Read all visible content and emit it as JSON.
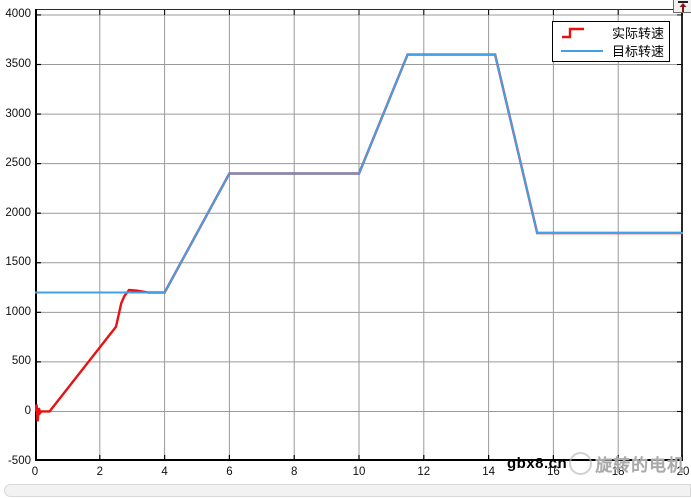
{
  "window": {
    "background": "#ffffff",
    "scrollbar_color": "#f2f2f2"
  },
  "icons": {
    "dock": "dock-pin-up-arrow"
  },
  "chart_data": {
    "type": "line",
    "title": "",
    "xlabel": "",
    "ylabel": "",
    "xlim": [
      0,
      20
    ],
    "ylim": [
      -500,
      4060
    ],
    "x_ticks": [
      0,
      2,
      4,
      6,
      8,
      10,
      12,
      14,
      16,
      18,
      20
    ],
    "y_ticks": [
      -500,
      0,
      500,
      1000,
      1500,
      2000,
      2500,
      3000,
      3500,
      4000
    ],
    "grid": true,
    "grid_color": "#9a9a9a",
    "axis_color": "#000000",
    "legend": {
      "position": "top-right",
      "entries": [
        {
          "label": "实际转速",
          "color": "#e81212",
          "glyph": "step-line"
        },
        {
          "label": "目标转速",
          "color": "#41a0e8",
          "glyph": "solid-line"
        }
      ]
    },
    "series": [
      {
        "name": "实际转速",
        "color": "#e81212",
        "points": [
          [
            0,
            0
          ],
          [
            0.05,
            70
          ],
          [
            0.08,
            -100
          ],
          [
            0.12,
            35
          ],
          [
            0.16,
            -15
          ],
          [
            0.2,
            0
          ],
          [
            0.45,
            0
          ],
          [
            2.5,
            855
          ],
          [
            2.66,
            1090
          ],
          [
            2.76,
            1165
          ],
          [
            2.9,
            1225
          ],
          [
            3.15,
            1218
          ],
          [
            3.5,
            1200
          ],
          [
            4,
            1200
          ],
          [
            6,
            2400
          ],
          [
            10,
            2400
          ],
          [
            11.5,
            3600
          ],
          [
            14.2,
            3600
          ],
          [
            15.5,
            1800
          ],
          [
            20,
            1800
          ]
        ]
      },
      {
        "name": "目标转速",
        "color": "#41a0e8",
        "points": [
          [
            0,
            1200
          ],
          [
            4,
            1200
          ],
          [
            6,
            2400
          ],
          [
            10,
            2400
          ],
          [
            11.5,
            3600
          ],
          [
            14.2,
            3600
          ],
          [
            15.5,
            1800
          ],
          [
            20,
            1800
          ]
        ]
      }
    ]
  },
  "watermark": {
    "site": "gbx8.cn",
    "brand": "旋转的电机"
  }
}
